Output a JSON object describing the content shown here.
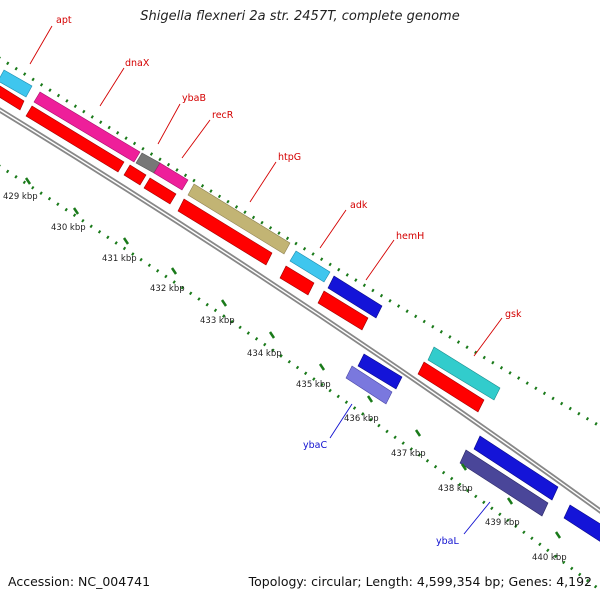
{
  "title": "Shigella flexneri 2a str. 2457T, complete genome",
  "accession_label": "Accession: NC_004741",
  "summary": "Topology: circular; Length: 4,599,354 bp; Genes: 4,192",
  "ruler": {
    "unit": "kbp",
    "ticks": [
      429,
      430,
      431,
      432,
      433,
      434,
      435,
      436,
      437,
      438,
      439,
      440
    ]
  },
  "genes": [
    {
      "name": "apt",
      "strand": "+"
    },
    {
      "name": "dnaX",
      "strand": "+"
    },
    {
      "name": "ybaB",
      "strand": "+"
    },
    {
      "name": "recR",
      "strand": "+"
    },
    {
      "name": "htpG",
      "strand": "+"
    },
    {
      "name": "adk",
      "strand": "+"
    },
    {
      "name": "hemH",
      "strand": "+"
    },
    {
      "name": "gsk",
      "strand": "+"
    },
    {
      "name": "ybaC",
      "strand": "-"
    },
    {
      "name": "ybaL",
      "strand": "-"
    }
  ],
  "colors": {
    "forward_label": "#d40000",
    "reverse_label": "#1010d0",
    "cds": "#ff0000",
    "tick": "#1a7a1a",
    "backbone": "#888888"
  }
}
